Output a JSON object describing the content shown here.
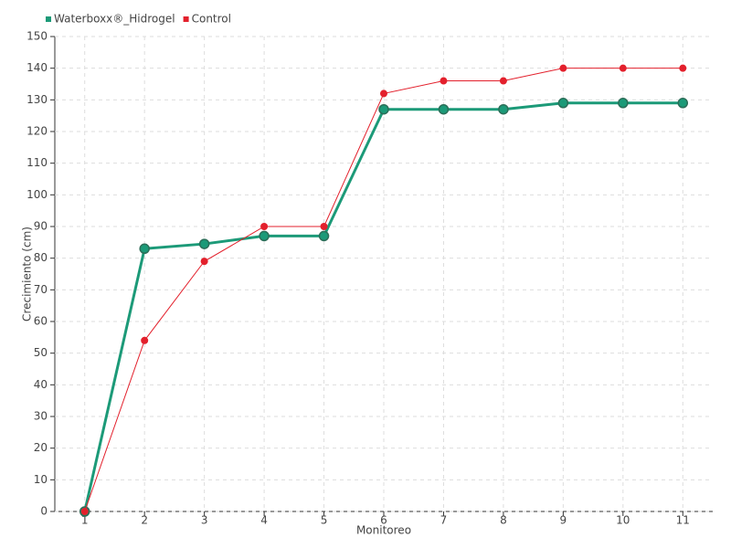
{
  "chart_data": {
    "type": "line",
    "x_label": "Monitoreo",
    "y_label": "Crecimiento (cm)",
    "x": [
      1,
      2,
      3,
      4,
      5,
      6,
      7,
      8,
      9,
      10,
      11
    ],
    "xlim": [
      0.5,
      11.5
    ],
    "xticks": [
      1,
      2,
      3,
      4,
      5,
      6,
      7,
      8,
      9,
      10,
      11
    ],
    "ylim": [
      0,
      150
    ],
    "yticks": [
      0,
      10,
      20,
      30,
      40,
      50,
      60,
      70,
      80,
      90,
      100,
      110,
      120,
      130,
      140,
      150
    ],
    "grid": true,
    "legend": "top-left",
    "series": [
      {
        "name": "Waterboxx®_Hidrogel",
        "color": "#1c9a78",
        "values": [
          0,
          83,
          84.5,
          87,
          87,
          127,
          127,
          127,
          129,
          129,
          129
        ]
      },
      {
        "name": "Control",
        "color": "#e3202c",
        "values": [
          0,
          54,
          79,
          90,
          90,
          132,
          136,
          136,
          140,
          140,
          140
        ]
      }
    ]
  }
}
